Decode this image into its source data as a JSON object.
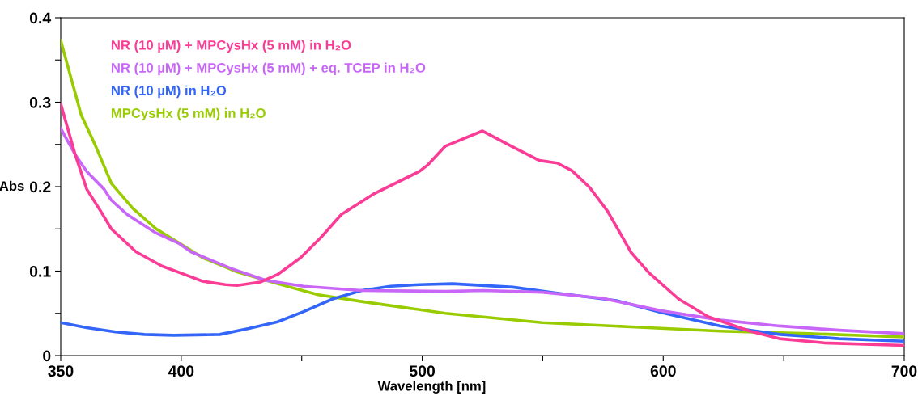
{
  "chart_data": {
    "type": "line",
    "xlabel": "Wavelength [nm]",
    "ylabel": "Abs",
    "xlim": [
      350,
      700
    ],
    "xticks": [
      350,
      400,
      {
        "value": 450,
        "label": null
      },
      500,
      {
        "value": 550,
        "label": null
      },
      600,
      {
        "value": 650,
        "label": null
      },
      700
    ],
    "ylim": [
      0,
      0.4
    ],
    "yticks": [
      0,
      {
        "value": 0.05,
        "label": null
      },
      0.1,
      {
        "value": 0.15,
        "label": null
      },
      0.2,
      {
        "value": 0.25,
        "label": null
      },
      0.3,
      {
        "value": 0.35,
        "label": null
      },
      0.4
    ],
    "grid": false,
    "legend": "top left",
    "line_style": "solid",
    "marker": "none",
    "series": [
      {
        "name": "NR (10 µM) + MPCysHx (5 mM) in H₂O",
        "color": "#fa3c96",
        "x": [
          350,
          356,
          360.8,
          366.8,
          371,
          381.2,
          392,
          401.4,
          408.8,
          418.4,
          423.2,
          432.8,
          440,
          449.6,
          458,
          466.4,
          479.6,
          498.8,
          502.4,
          509.6,
          525,
          537.6,
          548.6,
          556,
          562.1,
          569.5,
          576.9,
          586.7,
          594.1,
          606.4,
          618.7,
          635.9,
          648.2,
          666.7,
          700
        ],
        "values": [
          0.298,
          0.238,
          0.197,
          0.17,
          0.15,
          0.123,
          0.106,
          0.096,
          0.088,
          0.084,
          0.083,
          0.087,
          0.096,
          0.116,
          0.14,
          0.167,
          0.191,
          0.218,
          0.226,
          0.248,
          0.266,
          0.247,
          0.231,
          0.228,
          0.219,
          0.199,
          0.171,
          0.122,
          0.098,
          0.067,
          0.046,
          0.029,
          0.02,
          0.015,
          0.012
        ]
      },
      {
        "name": "NR (10 µM) + MPCysHx (5 mM) + eq. TCEP in H₂O",
        "color": "#c866f8",
        "x": [
          350,
          356,
          360.8,
          368,
          371,
          377.6,
          389.6,
          399,
          404,
          420.8,
          435.2,
          450.8,
          474.8,
          509.6,
          525.2,
          549.8,
          574.5,
          599.2,
          623.8,
          648.4,
          673,
          700
        ],
        "values": [
          0.269,
          0.238,
          0.218,
          0.197,
          0.184,
          0.167,
          0.145,
          0.133,
          0.123,
          0.103,
          0.089,
          0.082,
          0.077,
          0.076,
          0.077,
          0.075,
          0.068,
          0.053,
          0.042,
          0.035,
          0.03,
          0.026
        ]
      },
      {
        "name": "NR (10 µM) in H₂O",
        "color": "#3366f8",
        "x": [
          350,
          360.8,
          372.8,
          384.8,
          396.8,
          416,
          428,
          440,
          450.8,
          462.8,
          474.8,
          486.8,
          498.8,
          512.6,
          537.6,
          556,
          580.6,
          599.2,
          623.8,
          648.4,
          673,
          700
        ],
        "values": [
          0.039,
          0.033,
          0.028,
          0.025,
          0.024,
          0.025,
          0.032,
          0.04,
          0.052,
          0.067,
          0.077,
          0.082,
          0.084,
          0.085,
          0.081,
          0.074,
          0.065,
          0.051,
          0.035,
          0.025,
          0.02,
          0.017
        ]
      },
      {
        "name": "MPCysHx (5 mM) in H₂O",
        "color": "#99cc00",
        "x": [
          350,
          358.5,
          364.5,
          371,
          380,
          389.6,
          400.4,
          408.8,
          423.2,
          438.8,
          456.8,
          474.8,
          509.6,
          549.8,
          586.7,
          623.8,
          660.6,
          700
        ],
        "values": [
          0.373,
          0.285,
          0.248,
          0.204,
          0.174,
          0.15,
          0.131,
          0.116,
          0.099,
          0.086,
          0.072,
          0.064,
          0.05,
          0.039,
          0.034,
          0.029,
          0.026,
          0.022
        ]
      }
    ]
  }
}
